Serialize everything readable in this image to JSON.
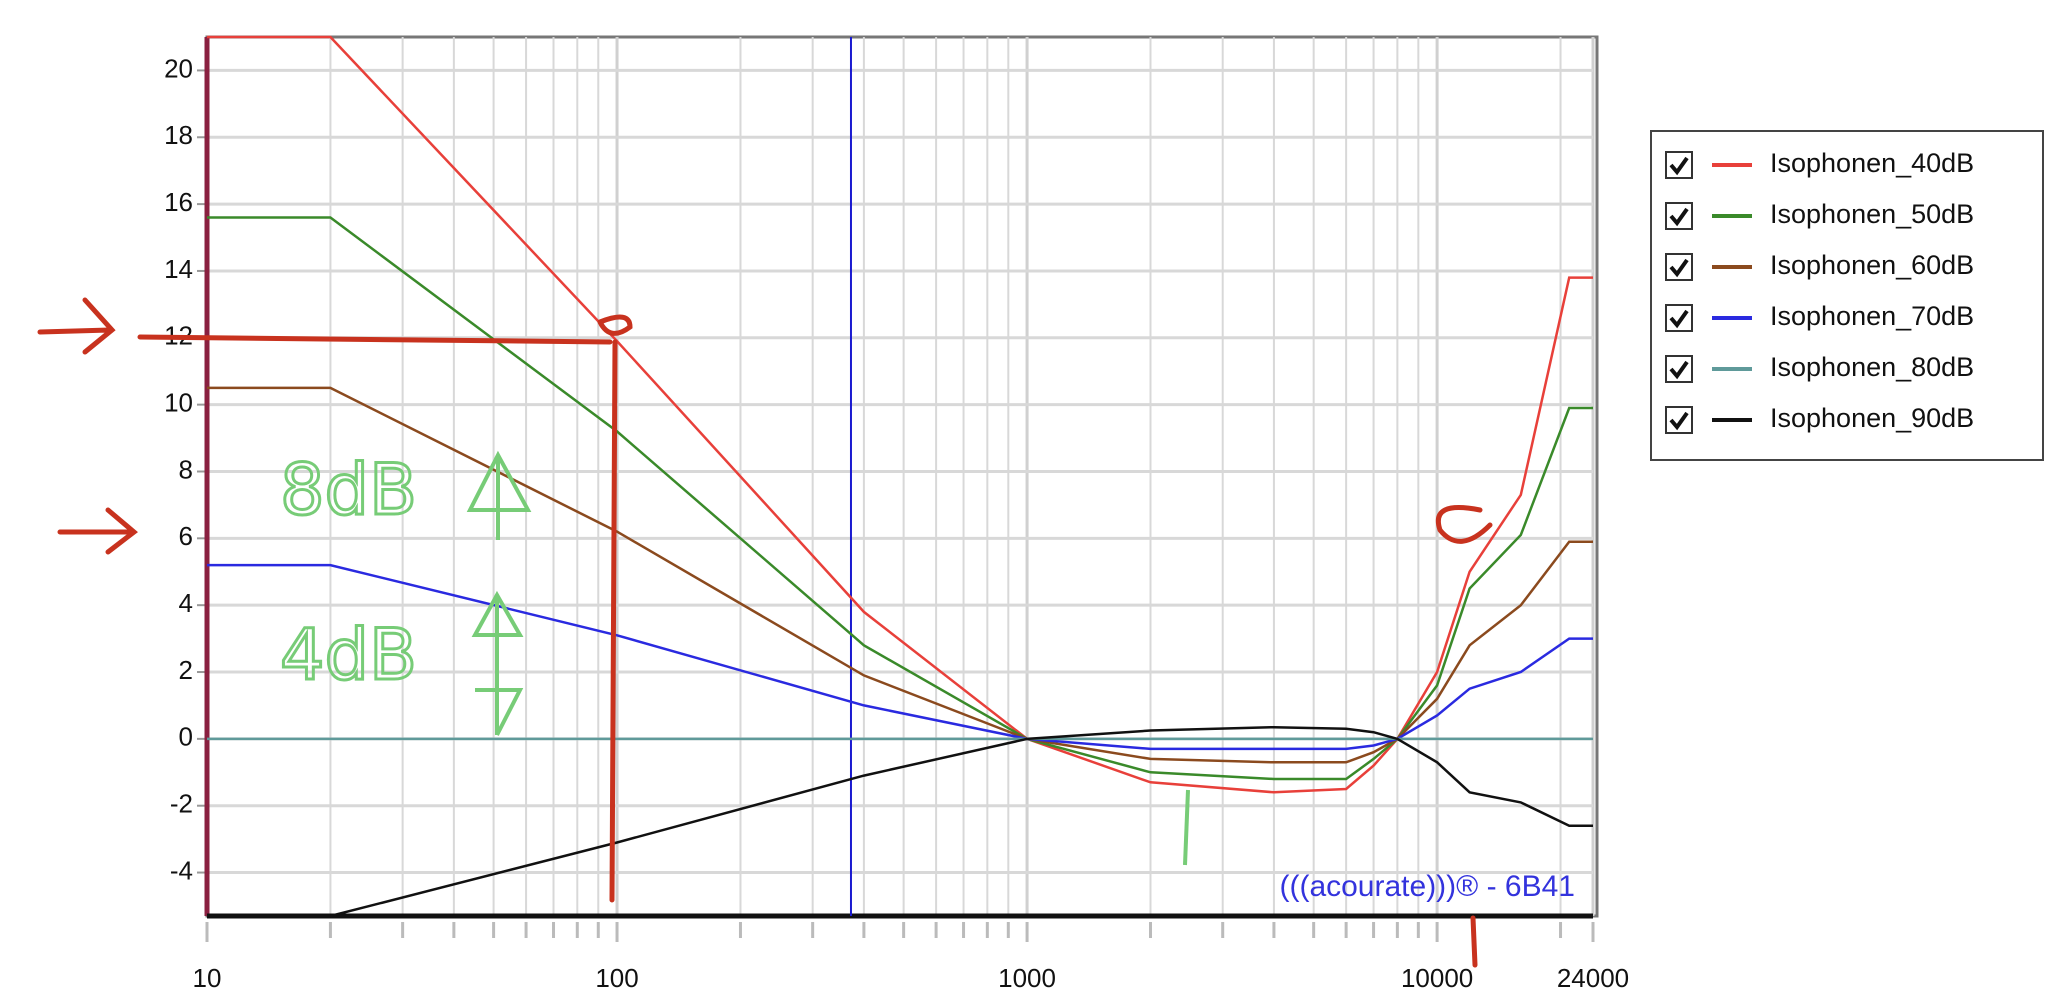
{
  "chart_data": {
    "type": "line",
    "x": [
      10,
      20,
      100,
      400,
      1000,
      2000,
      4000,
      6000,
      7000,
      8000,
      10000,
      12000,
      16000,
      21000,
      24000
    ],
    "series": [
      {
        "name": "Isophonen_40dB",
        "color": "#e8403a",
        "values": [
          21,
          21,
          11.9,
          3.8,
          0,
          -1.3,
          -1.6,
          -1.5,
          -0.8,
          0,
          2,
          5,
          7.3,
          13.8,
          13.8
        ]
      },
      {
        "name": "Isophonen_50dB",
        "color": "#3a8a2a",
        "values": [
          15.6,
          15.6,
          9.2,
          2.8,
          0,
          -1.0,
          -1.2,
          -1.2,
          -0.6,
          0,
          1.6,
          4.5,
          6.1,
          9.9,
          9.9
        ]
      },
      {
        "name": "Isophonen_60dB",
        "color": "#8b4a1e",
        "values": [
          10.5,
          10.5,
          6.2,
          1.9,
          0,
          -0.6,
          -0.7,
          -0.7,
          -0.4,
          0,
          1.2,
          2.8,
          4.0,
          5.9,
          5.9
        ]
      },
      {
        "name": "Isophonen_70dB",
        "color": "#2a2ae0",
        "values": [
          5.2,
          5.2,
          3.1,
          1.0,
          0,
          -0.3,
          -0.3,
          -0.3,
          -0.2,
          0,
          0.7,
          1.5,
          2.0,
          3.0,
          3.0
        ]
      },
      {
        "name": "Isophonen_80dB",
        "color": "#5f9a9a",
        "values": [
          0,
          0,
          0,
          0,
          0,
          0,
          0,
          0,
          0,
          0,
          0,
          0,
          0,
          0,
          0
        ]
      },
      {
        "name": "Isophonen_90dB",
        "color": "#111111",
        "values": [
          -5.3,
          -5.3,
          -3.1,
          -1.1,
          0,
          0.25,
          0.35,
          0.3,
          0.2,
          0,
          -0.7,
          -1.6,
          -1.9,
          -2.6,
          -2.6
        ]
      }
    ],
    "log_x": true,
    "xlim": [
      10,
      24000
    ],
    "xticks": [
      10,
      100,
      1000,
      10000,
      24000
    ],
    "x_minor_ticks": [
      20,
      30,
      40,
      50,
      60,
      70,
      80,
      90,
      200,
      300,
      400,
      500,
      600,
      700,
      800,
      900,
      2000,
      3000,
      4000,
      5000,
      6000,
      7000,
      8000,
      9000,
      20000
    ],
    "ylim": [
      -5.3,
      21
    ],
    "yticks": [
      -4,
      -2,
      0,
      2,
      4,
      6,
      8,
      10,
      12,
      14,
      16,
      18,
      20
    ],
    "grid": true,
    "legend": "right",
    "cursor_x": 372,
    "watermark": "(((acourate)))® - 6B41",
    "annotations": [
      "8dB",
      "4dB"
    ]
  }
}
